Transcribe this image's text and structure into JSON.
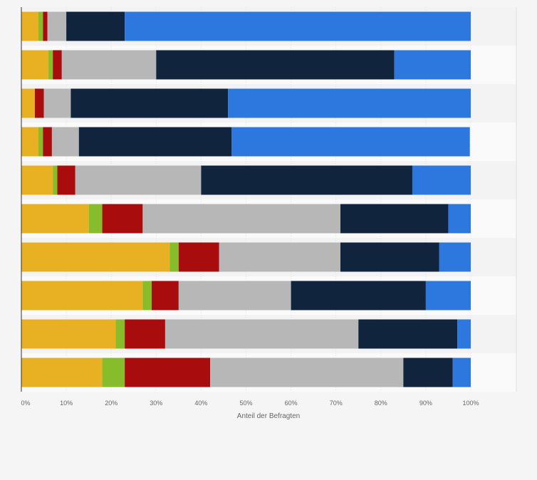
{
  "chart_data": {
    "type": "bar",
    "orientation": "horizontal",
    "stacked": true,
    "xlabel": "Anteil der Befragten",
    "ylabel": "",
    "xlim": [
      0,
      100
    ],
    "x_ticks": [
      "0%",
      "10%",
      "20%",
      "30%",
      "40%",
      "50%",
      "60%",
      "70%",
      "80%",
      "90%",
      "100%"
    ],
    "grid": true,
    "categories": [
      "",
      "",
      "",
      "",
      "",
      "",
      "",
      "",
      "",
      ""
    ],
    "series": [
      {
        "color": "#e8b124",
        "values": [
          3.8,
          6,
          3,
          3.8,
          7,
          15,
          33,
          27,
          21,
          18
        ]
      },
      {
        "color": "#87bd2b",
        "values": [
          1,
          1,
          0,
          1,
          1,
          3,
          2,
          2,
          2,
          5
        ]
      },
      {
        "color": "#a80c0c",
        "values": [
          1,
          2,
          2,
          2,
          4,
          9,
          9,
          6,
          9,
          19
        ]
      },
      {
        "color": "#b7b7b7",
        "values": [
          4.2,
          21,
          6,
          6,
          28,
          44,
          27,
          25,
          43,
          43
        ]
      },
      {
        "color": "#10253d",
        "values": [
          13,
          53,
          35,
          34,
          47,
          24,
          22,
          30,
          22,
          11
        ]
      },
      {
        "color": "#2c78de",
        "values": [
          77,
          17,
          54,
          53,
          13,
          5,
          7,
          10,
          3,
          4
        ]
      }
    ]
  }
}
